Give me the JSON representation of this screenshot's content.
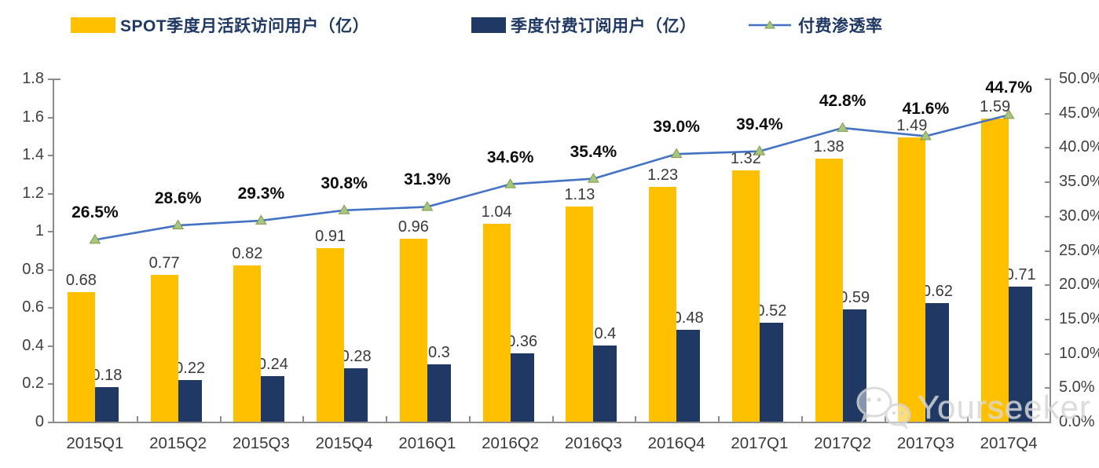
{
  "page": {
    "background": "#ffffff"
  },
  "legend": [
    {
      "label": "SPOT季度月活跃访问用户（亿）",
      "color": "#FFC000"
    },
    {
      "label": "季度付费订阅用户（亿）",
      "color": "#1F3864"
    },
    {
      "label": "付费渗透率",
      "line_color": "#4472C4",
      "marker_color": "#A9C47E"
    }
  ],
  "chart_data": {
    "type": "bar+line",
    "categories": [
      "2015Q1",
      "2015Q2",
      "2015Q3",
      "2015Q4",
      "2016Q1",
      "2016Q2",
      "2016Q3",
      "2016Q4",
      "2017Q1",
      "2017Q2",
      "2017Q3",
      "2017Q4"
    ],
    "series": [
      {
        "name": "SPOT季度月活跃访问用户（亿）",
        "type": "bar",
        "axis": "left",
        "color": "#FFC000",
        "values": [
          0.68,
          0.77,
          0.82,
          0.91,
          0.96,
          1.04,
          1.13,
          1.23,
          1.32,
          1.38,
          1.49,
          1.59
        ],
        "labels": [
          "0.68",
          "0.77",
          "0.82",
          "0.91",
          "0.96",
          "1.04",
          "1.13",
          "1.23",
          "1.32",
          "1.38",
          "1.49",
          "1.59"
        ]
      },
      {
        "name": "季度付费订阅用户（亿）",
        "type": "bar",
        "axis": "left",
        "color": "#1F3864",
        "values": [
          0.18,
          0.22,
          0.24,
          0.28,
          0.3,
          0.36,
          0.4,
          0.48,
          0.52,
          0.59,
          0.62,
          0.71
        ],
        "labels": [
          "0.18",
          "0.22",
          "0.24",
          "0.28",
          "0.3",
          "0.36",
          "0.4",
          "0.48",
          "0.52",
          "0.59",
          "0.62",
          "0.71"
        ]
      },
      {
        "name": "付费渗透率",
        "type": "line",
        "axis": "right",
        "color": "#4472C4",
        "marker_color": "#A9C47E",
        "marker_stroke": "#7C9C4E",
        "values": [
          26.5,
          28.6,
          29.3,
          30.8,
          31.3,
          34.6,
          35.4,
          39.0,
          39.4,
          42.8,
          41.6,
          44.7
        ],
        "labels": [
          "26.5%",
          "28.6%",
          "29.3%",
          "30.8%",
          "31.3%",
          "34.6%",
          "35.4%",
          "39.0%",
          "39.4%",
          "42.8%",
          "41.6%",
          "44.7%"
        ]
      }
    ],
    "left_axis": {
      "min": 0,
      "max": 1.8,
      "ticks": [
        "1.8",
        "1.6",
        "1.4",
        "1.2",
        "1",
        "0.8",
        "0.6",
        "0.4",
        "0.2",
        "0"
      ]
    },
    "right_axis": {
      "min": 0,
      "max": 50,
      "ticks": [
        "50.0%",
        "45.0%",
        "40.0%",
        "35.0%",
        "30.0%",
        "25.0%",
        "20.0%",
        "15.0%",
        "10.0%",
        "5.0%",
        "0.0%"
      ]
    },
    "grid": false,
    "legend_position": "top"
  },
  "watermark": {
    "text": "Yourseeker",
    "icon": "wechat-chat-bubbles-icon"
  }
}
